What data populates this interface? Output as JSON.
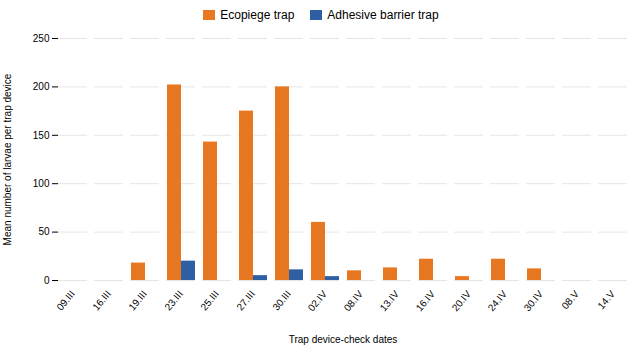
{
  "chart_data": {
    "type": "bar",
    "categories": [
      "09.III",
      "16.III",
      "19.III",
      "23.III",
      "25.III",
      "27.III",
      "30.III",
      "02.IV",
      "08.IV",
      "13.IV",
      "16.IV",
      "20.IV",
      "24.IV",
      "30.IV",
      "08.V",
      "14.V"
    ],
    "series": [
      {
        "name": "Ecopiege trap",
        "color": "#E87722",
        "values": [
          0,
          0,
          18,
          202,
          143,
          175,
          200,
          60,
          10,
          13,
          22,
          4,
          22,
          12,
          0,
          0
        ]
      },
      {
        "name": "Adhesive barrier trap",
        "color": "#2E5FA3",
        "values": [
          0,
          0,
          0,
          20,
          0,
          5,
          11,
          4,
          0,
          0,
          0,
          0,
          0,
          0,
          0,
          0
        ]
      }
    ],
    "xlabel": "Trap device-check dates",
    "ylabel": "Mean number of larvae per trap device",
    "ylim": [
      0,
      250
    ],
    "yticks": [
      0,
      50,
      100,
      150,
      200,
      250
    ],
    "grid": true,
    "legend": "top"
  }
}
